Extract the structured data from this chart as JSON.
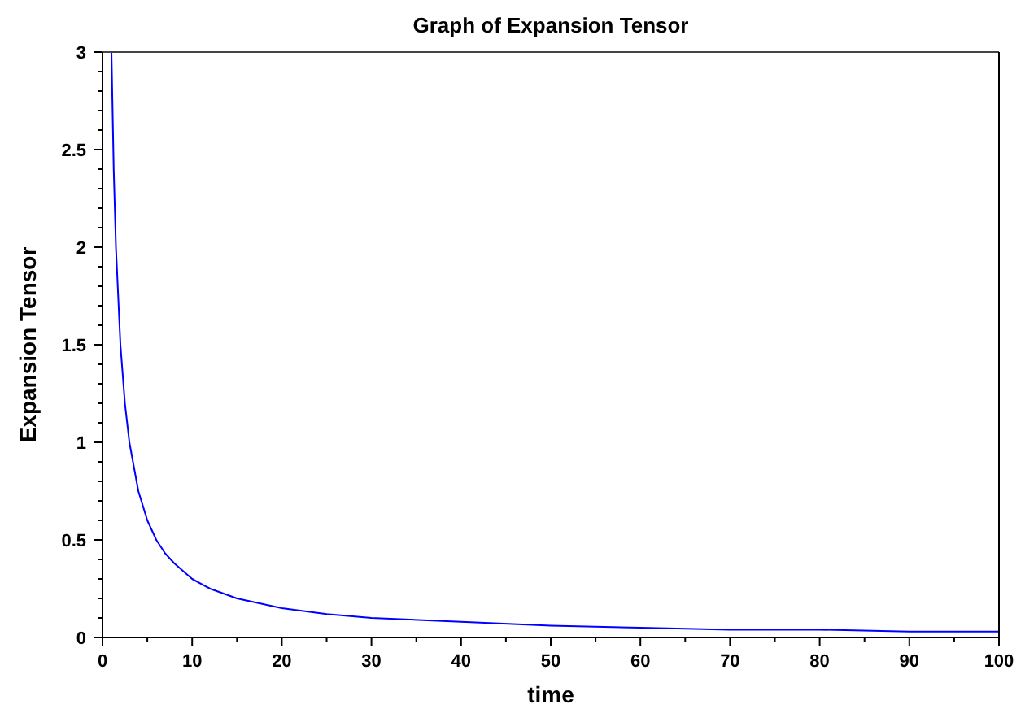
{
  "chart_data": {
    "type": "line",
    "title": "Graph of Expansion Tensor",
    "xlabel": "time",
    "ylabel": "Expansion Tensor",
    "x": [
      1,
      1.25,
      1.5,
      2,
      2.5,
      3,
      4,
      5,
      6,
      7,
      8,
      10,
      12,
      15,
      20,
      25,
      30,
      40,
      50,
      60,
      70,
      80,
      90,
      100
    ],
    "series": [
      {
        "color": "#0000ff",
        "values": [
          3,
          2.4,
          2,
          1.5,
          1.2,
          1,
          0.75,
          0.6,
          0.5,
          0.43,
          0.38,
          0.3,
          0.25,
          0.2,
          0.15,
          0.12,
          0.1,
          0.08,
          0.06,
          0.05,
          0.04,
          0.04,
          0.03,
          0.03
        ]
      }
    ],
    "xlim": [
      0,
      100
    ],
    "ylim": [
      0,
      3
    ],
    "xticks": [
      0,
      {
        "value": 5,
        "label": null
      },
      10,
      {
        "value": 15,
        "label": null
      },
      20,
      {
        "value": 25,
        "label": null
      },
      30,
      {
        "value": 35,
        "label": null
      },
      40,
      {
        "value": 45,
        "label": null
      },
      50,
      {
        "value": 55,
        "label": null
      },
      60,
      {
        "value": 65,
        "label": null
      },
      70,
      {
        "value": 75,
        "label": null
      },
      80,
      {
        "value": 85,
        "label": null
      },
      90,
      {
        "value": 95,
        "label": null
      },
      100
    ],
    "yticks": [
      0,
      {
        "value": 0.1,
        "label": null
      },
      {
        "value": 0.2,
        "label": null
      },
      {
        "value": 0.3,
        "label": null
      },
      {
        "value": 0.4,
        "label": null
      },
      0.5,
      {
        "value": 0.6,
        "label": null
      },
      {
        "value": 0.7,
        "label": null
      },
      {
        "value": 0.8,
        "label": null
      },
      {
        "value": 0.9,
        "label": null
      },
      1,
      {
        "value": 1.1,
        "label": null
      },
      {
        "value": 1.2,
        "label": null
      },
      {
        "value": 1.3,
        "label": null
      },
      {
        "value": 1.4,
        "label": null
      },
      1.5,
      {
        "value": 1.6,
        "label": null
      },
      {
        "value": 1.7,
        "label": null
      },
      {
        "value": 1.8,
        "label": null
      },
      {
        "value": 1.9,
        "label": null
      },
      2,
      {
        "value": 2.1,
        "label": null
      },
      {
        "value": 2.2,
        "label": null
      },
      {
        "value": 2.3,
        "label": null
      },
      {
        "value": 2.4,
        "label": null
      },
      2.5,
      {
        "value": 2.6,
        "label": null
      },
      {
        "value": 2.7,
        "label": null
      },
      {
        "value": 2.8,
        "label": null
      },
      {
        "value": 2.9,
        "label": null
      },
      3
    ],
    "grid": false,
    "marker": "none",
    "line_style": "solid"
  }
}
